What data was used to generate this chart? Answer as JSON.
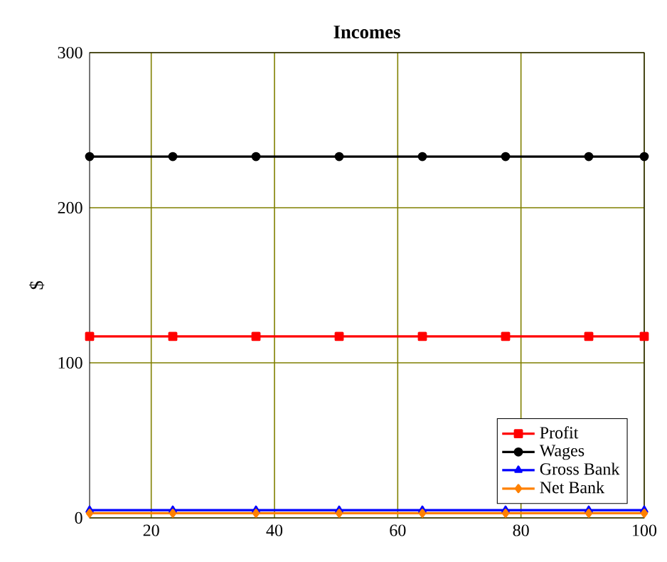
{
  "chart_data": {
    "type": "line",
    "title": "Incomes",
    "ylabel": "$",
    "x": [
      10,
      23.5,
      37,
      50.5,
      64,
      77.5,
      91,
      100
    ],
    "xlim": [
      10,
      100
    ],
    "xticks": [
      20,
      40,
      60,
      80,
      100
    ],
    "ylim": [
      0,
      300
    ],
    "yticks": [
      0,
      100,
      200,
      300
    ],
    "grid": true,
    "legend": "bottom right",
    "line_style": "solid",
    "series": [
      {
        "name": "Profit",
        "color": "#ff0000",
        "marker": "square",
        "values": [
          117,
          117,
          117,
          117,
          117,
          117,
          117,
          117
        ]
      },
      {
        "name": "Wages",
        "color": "#000000",
        "marker": "circle",
        "values": [
          233,
          233,
          233,
          233,
          233,
          233,
          233,
          233
        ]
      },
      {
        "name": "Gross Bank",
        "color": "#0000ff",
        "marker": "triangle",
        "values": [
          5,
          5,
          5,
          5,
          5,
          5,
          5,
          5
        ]
      },
      {
        "name": "Net Bank",
        "color": "#ff8000",
        "marker": "diamond",
        "values": [
          3,
          3,
          3,
          3,
          3,
          3,
          3,
          3
        ]
      }
    ]
  }
}
